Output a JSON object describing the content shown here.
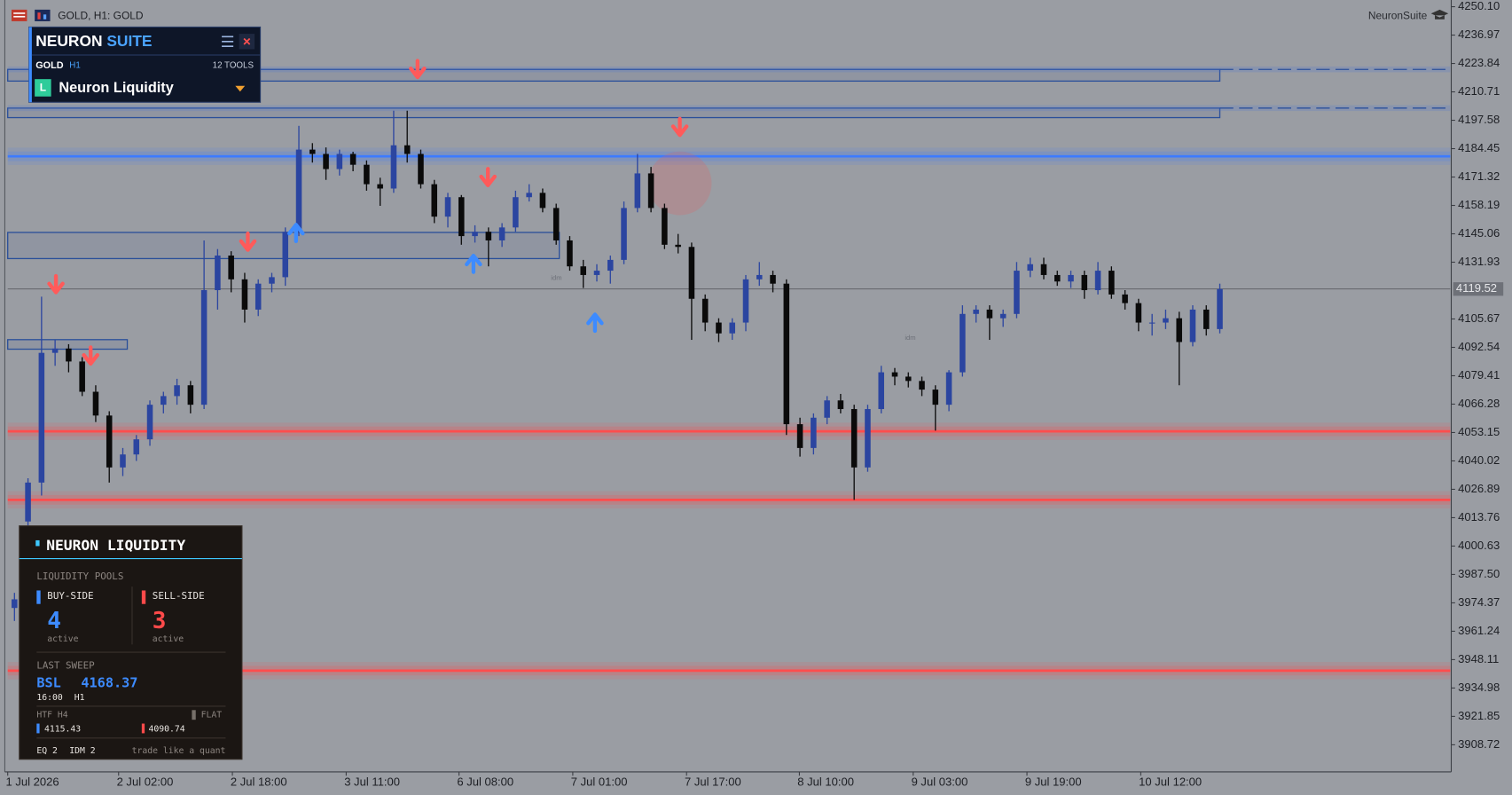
{
  "toolbar": {
    "symbol": "GOLD, H1:  GOLD",
    "brand": "NeuronSuite"
  },
  "suite_panel": {
    "title_a": "NEURON",
    "title_b": "SUITE",
    "symbol": "GOLD",
    "timeframe": "H1",
    "tools": "12 TOOLS",
    "tool_icon": "L",
    "tool_name": "Neuron Liquidity"
  },
  "liquidity_panel": {
    "title": "NEURON LIQUIDITY",
    "pools_label": "LIQUIDITY POOLS",
    "buy_label": "BUY-SIDE",
    "buy_count": 4,
    "buy_sub": "active",
    "sell_label": "SELL-SIDE",
    "sell_count": 3,
    "sell_sub": "active",
    "sweep_label": "LAST SWEEP",
    "sweep_side": "BSL",
    "sweep_price": 4168.37,
    "sweep_time": "16:00",
    "sweep_tf": "H1",
    "htf_label": "HTF H4",
    "htf_state": "FLAT",
    "htf_high": 4115.43,
    "htf_low": 4090.74,
    "eq": "EQ 2",
    "idm": "IDM 2",
    "slogan": "trade like a quant"
  },
  "chart_data": {
    "type": "candlestick",
    "up_color": "#2b45a0",
    "down_color": "#0a0a0a",
    "open": [
      3972,
      4012,
      4030,
      4090,
      4092,
      4086,
      4072,
      4061,
      4037,
      4043,
      4050,
      4066,
      4070,
      4075,
      4066,
      4119,
      4135,
      4124,
      4110,
      4122,
      4125,
      4146,
      4184,
      4182,
      4175,
      4182,
      4177,
      4168,
      4166,
      4186,
      4182,
      4168,
      4153,
      4162,
      4144,
      4146,
      4142,
      4148,
      4162,
      4164,
      4157,
      4142,
      4130,
      4126,
      4128,
      4133,
      4157,
      4173,
      4157,
      4140,
      4139,
      4115,
      4104,
      4099,
      4104,
      4124,
      4126,
      4122,
      4057,
      4046,
      4060,
      4068,
      4064,
      4037,
      4064,
      4081,
      4079,
      4077,
      4073,
      4066,
      4081,
      4108,
      4110,
      4106,
      4108,
      4128,
      4131,
      4126,
      4123,
      4126,
      4119,
      4128,
      4117,
      4113,
      4104,
      4104,
      4106,
      4095,
      4110,
      4101
    ],
    "high": [
      3979,
      4032,
      4116,
      4096,
      4094,
      4088,
      4075,
      4063,
      4046,
      4052,
      4068,
      4072,
      4078,
      4077,
      4142,
      4138,
      4137,
      4127,
      4124,
      4127,
      4148,
      4195,
      4187,
      4185,
      4184,
      4183,
      4179,
      4171,
      4202,
      4202,
      4184,
      4170,
      4164,
      4163,
      4149,
      4148,
      4150,
      4165,
      4168,
      4166,
      4159,
      4144,
      4133,
      4131,
      4135,
      4160,
      4182,
      4176,
      4159,
      4145,
      4141,
      4117,
      4106,
      4106,
      4126,
      4132,
      4128,
      4124,
      4060,
      4062,
      4070,
      4071,
      4066,
      4066,
      4084,
      4083,
      4081,
      4079,
      4075,
      4082,
      4112,
      4112,
      4112,
      4110,
      4132,
      4134,
      4134,
      4128,
      4128,
      4128,
      4132,
      4130,
      4119,
      4115,
      4108,
      4110,
      4109,
      4112,
      4112,
      4122
    ],
    "low": [
      3966,
      4008,
      4024,
      4084,
      4081,
      4070,
      4058,
      4030,
      4033,
      4040,
      4047,
      4062,
      4066,
      4062,
      4064,
      4110,
      4118,
      4104,
      4107,
      4118,
      4121,
      4144,
      4178,
      4170,
      4172,
      4174,
      4165,
      4158,
      4164,
      4178,
      4166,
      4150,
      4148,
      4140,
      4141,
      4130,
      4139,
      4146,
      4160,
      4155,
      4140,
      4128,
      4120,
      4123,
      4122,
      4131,
      4155,
      4155,
      4138,
      4136,
      4096,
      4100,
      4095,
      4096,
      4100,
      4121,
      4118,
      4052,
      4042,
      4043,
      4057,
      4062,
      4022,
      4035,
      4062,
      4075,
      4074,
      4070,
      4054,
      4063,
      4079,
      4104,
      4096,
      4102,
      4106,
      4125,
      4124,
      4121,
      4120,
      4115,
      4117,
      4115,
      4110,
      4100,
      4098,
      4101,
      4075,
      4093,
      4098,
      4099
    ],
    "close": [
      3976,
      4030,
      4090,
      4092,
      4086,
      4072,
      4061,
      4037,
      4043,
      4050,
      4066,
      4070,
      4075,
      4066,
      4119,
      4135,
      4124,
      4110,
      4122,
      4125,
      4146,
      4184,
      4182,
      4175,
      4182,
      4177,
      4168,
      4166,
      4186,
      4182,
      4168,
      4153,
      4162,
      4144,
      4146,
      4142,
      4148,
      4162,
      4164,
      4157,
      4142,
      4130,
      4126,
      4128,
      4133,
      4157,
      4173,
      4157,
      4140,
      4139,
      4115,
      4104,
      4099,
      4104,
      4124,
      4126,
      4122,
      4057,
      4046,
      4060,
      4068,
      4064,
      4037,
      4064,
      4081,
      4079,
      4077,
      4073,
      4066,
      4081,
      4108,
      4110,
      4106,
      4108,
      4128,
      4131,
      4126,
      4123,
      4126,
      4119,
      4128,
      4117,
      4113,
      4104,
      4104,
      4106,
      4095,
      4110,
      4101,
      4119.52
    ],
    "last_price": 4119.52,
    "ylim": [
      3896.2,
      4253.2
    ],
    "yticks": [
      {
        "value": 4250.1,
        "label": "4250.10"
      },
      4236.97,
      4223.84,
      4210.71,
      4197.58,
      4184.45,
      4171.32,
      4158.19,
      4145.06,
      4131.93,
      4105.67,
      4092.54,
      4079.41,
      4066.28,
      4053.15,
      4040.02,
      4026.89,
      4013.76,
      4000.63,
      {
        "value": 3987.5,
        "label": "3987.50"
      },
      3974.37,
      3961.24,
      3948.11,
      3934.98,
      3921.85,
      3908.72
    ],
    "time_labels": [
      "1 Jul 2026",
      "2 Jul 02:00",
      "2 Jul 18:00",
      "3 Jul 11:00",
      "6 Jul 08:00",
      "7 Jul 01:00",
      "7 Jul 17:00",
      "8 Jul 10:00",
      "9 Jul 03:00",
      "9 Jul 19:00",
      "10 Jul 12:00"
    ],
    "buy_levels": [
      4180.9
    ],
    "sell_levels": [
      4053.7,
      4022.0,
      3943.0
    ],
    "zones": [
      [
        4221.1,
        4215.7
      ],
      [
        4203.2,
        4198.8
      ],
      [
        4145.7,
        4133.6
      ],
      [
        4096.1,
        4091.7
      ]
    ],
    "annotations": [
      "idm",
      "idm"
    ]
  }
}
